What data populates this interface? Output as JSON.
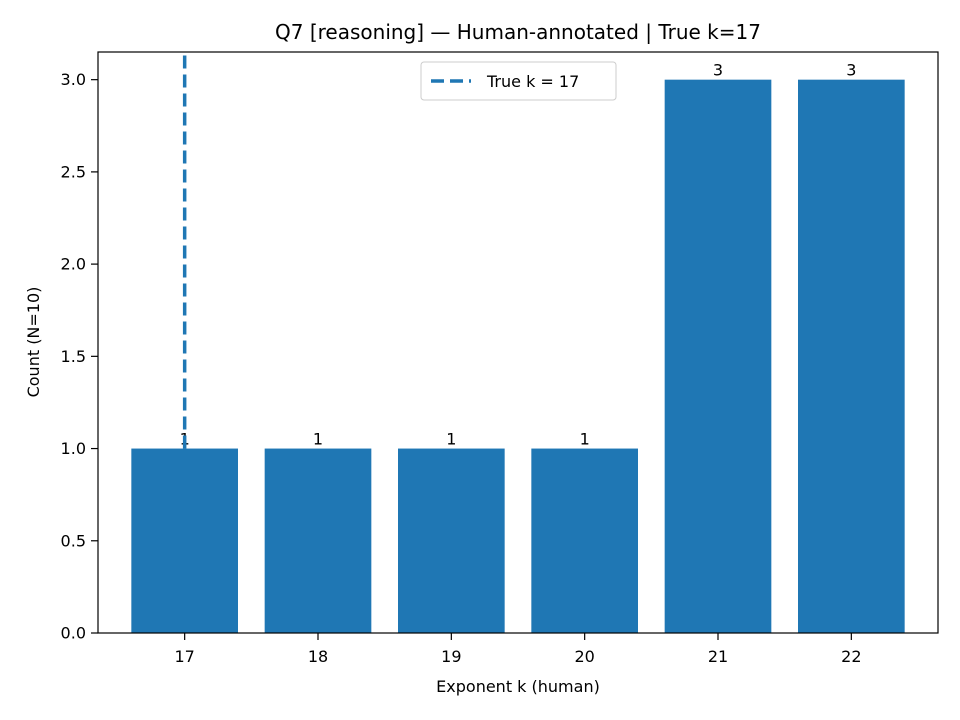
{
  "chart_data": {
    "type": "bar",
    "title": "Q7 [reasoning] — Human-annotated | True k=17",
    "xlabel": "Exponent k (human)",
    "ylabel": "Count (N=10)",
    "categories": [
      "17",
      "18",
      "19",
      "20",
      "21",
      "22"
    ],
    "x": [
      17,
      18,
      19,
      20,
      21,
      22
    ],
    "values": [
      1,
      1,
      1,
      1,
      3,
      3
    ],
    "bar_labels": [
      "1",
      "1",
      "1",
      "1",
      "3",
      "3"
    ],
    "xlim": [
      16.35,
      22.65
    ],
    "ylim": [
      0,
      3.15
    ],
    "yticks": [
      0.0,
      0.5,
      1.0,
      1.5,
      2.0,
      2.5,
      3.0
    ],
    "ytick_labels": [
      "0.0",
      "0.5",
      "1.0",
      "1.5",
      "2.0",
      "2.5",
      "3.0"
    ],
    "reference_line": {
      "x": 17,
      "style": "dashed",
      "label": "True k = 17"
    },
    "legend": {
      "position": "top-center",
      "entries": [
        "True k = 17"
      ]
    },
    "grid": false,
    "colors": {
      "bar": "#1f77b4",
      "line": "#1f77b4",
      "axes": "#000000"
    }
  }
}
